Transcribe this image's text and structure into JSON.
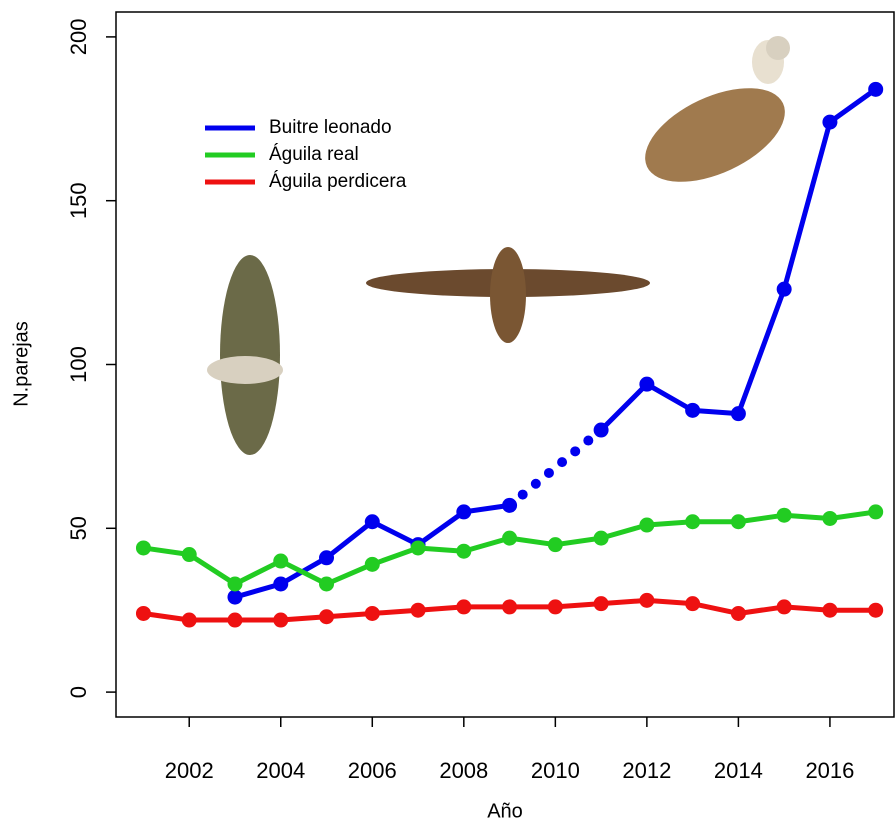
{
  "chart_data": {
    "type": "line",
    "x_label": "Año",
    "y_label": "N.parejas",
    "x": [
      2001,
      2002,
      2003,
      2004,
      2005,
      2006,
      2007,
      2008,
      2009,
      2010,
      2011,
      2012,
      2013,
      2014,
      2015,
      2016,
      2017
    ],
    "series": [
      {
        "name": "Buitre leonado",
        "color": "#0000ee",
        "values": [
          null,
          null,
          29,
          33,
          41,
          52,
          45,
          55,
          57,
          null,
          80,
          94,
          86,
          85,
          123,
          174,
          184
        ]
      },
      {
        "name": "Águila real",
        "color": "#22cc22",
        "values": [
          44,
          42,
          33,
          40,
          33,
          39,
          44,
          43,
          47,
          45,
          47,
          51,
          52,
          52,
          54,
          53,
          55
        ]
      },
      {
        "name": "Águila perdicera",
        "color": "#ee1111",
        "values": [
          24,
          22,
          22,
          22,
          23,
          24,
          25,
          26,
          26,
          26,
          27,
          28,
          27,
          24,
          26,
          25,
          25
        ]
      }
    ],
    "xlim": [
      2000.4,
      2017.4
    ],
    "ylim": [
      -7.6,
      207.6
    ],
    "xticks": [
      2002,
      2004,
      2006,
      2008,
      2010,
      2012,
      2014,
      2016
    ],
    "yticks": [
      0,
      50,
      100,
      150,
      200
    ],
    "legend": "top-left"
  }
}
